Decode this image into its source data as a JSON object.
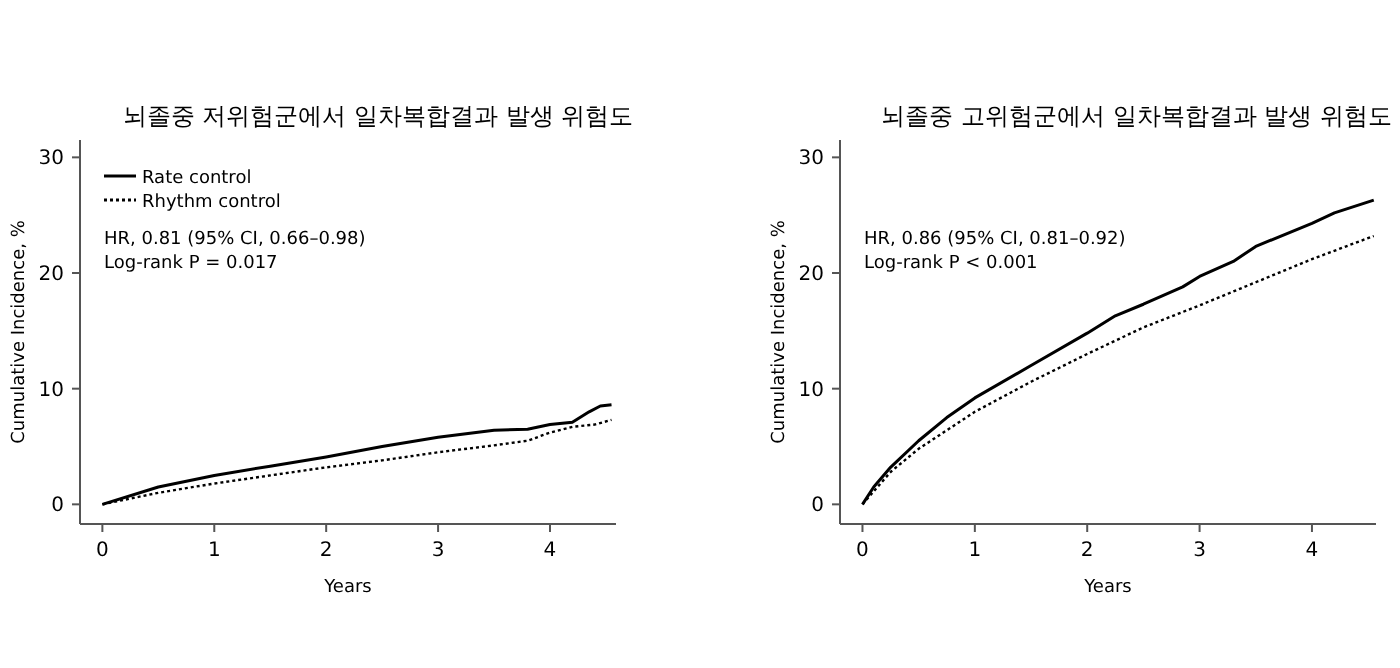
{
  "chart_data": [
    {
      "type": "line",
      "title": "뇌졸중 저위험군에서 일차복합결과 발생 위험도",
      "xlabel": "Years",
      "ylabel": "Cumulative Incidence, %",
      "xlim": [
        -0.2,
        4.59
      ],
      "ylim": [
        -1.7,
        31.5
      ],
      "xticks": [
        0,
        1,
        2,
        3,
        4
      ],
      "yticks": [
        0,
        10,
        20,
        30
      ],
      "legend": "top left",
      "annotations": [
        "HR, 0.81 (95% CI, 0.66–0.98)",
        "Log-rank P = 0.017"
      ],
      "series": [
        {
          "name": "Rate control",
          "color": "#000000",
          "line_style": "solid",
          "x": [
            0,
            0.5,
            1,
            1.5,
            2,
            2.5,
            3,
            3.5,
            3.8,
            4,
            4.2,
            4.35,
            4.45,
            4.55
          ],
          "values": [
            0,
            1.5,
            2.5,
            3.3,
            4.1,
            5,
            5.8,
            6.4,
            6.5,
            6.9,
            7.1,
            8,
            8.5,
            8.6
          ]
        },
        {
          "name": "Rhythm control",
          "color": "#000000",
          "line_style": "dotted",
          "x": [
            0,
            0.5,
            1,
            1.5,
            2,
            2.5,
            3,
            3.5,
            3.8,
            4,
            4.2,
            4.4,
            4.55
          ],
          "values": [
            0,
            1,
            1.8,
            2.5,
            3.2,
            3.8,
            4.5,
            5.1,
            5.5,
            6.2,
            6.7,
            6.9,
            7.3
          ]
        }
      ]
    },
    {
      "type": "line",
      "title": "뇌졸중 고위험군에서 일차복합결과 발생 위험도",
      "xlabel": "Years",
      "ylabel": "Cumulative Incidence, %",
      "xlim": [
        -0.2,
        4.57
      ],
      "ylim": [
        -1.7,
        31.5
      ],
      "xticks": [
        0,
        1,
        2,
        3,
        4
      ],
      "yticks": [
        0,
        10,
        20,
        30
      ],
      "annotations": [
        "HR, 0.86 (95% CI, 0.81–0.92)",
        "Log-rank P < 0.001"
      ],
      "series": [
        {
          "color": "#000000",
          "line_style": "solid",
          "x": [
            0,
            0.1,
            0.25,
            0.5,
            0.75,
            1,
            1.5,
            2,
            2.25,
            2.5,
            2.85,
            3,
            3.3,
            3.5,
            4,
            4.2,
            4.55
          ],
          "values": [
            0,
            1.5,
            3.2,
            5.5,
            7.5,
            9.2,
            12,
            14.8,
            16.3,
            17.3,
            18.8,
            19.7,
            21,
            22.3,
            24.3,
            25.2,
            26.3
          ]
        },
        {
          "color": "#000000",
          "line_style": "dotted",
          "x": [
            0,
            0.25,
            0.5,
            1,
            1.5,
            2,
            2.5,
            3,
            3.5,
            4,
            4.55
          ],
          "values": [
            0,
            2.8,
            4.8,
            8,
            10.6,
            13,
            15.3,
            17.2,
            19.2,
            21.2,
            23.2
          ]
        }
      ]
    }
  ]
}
